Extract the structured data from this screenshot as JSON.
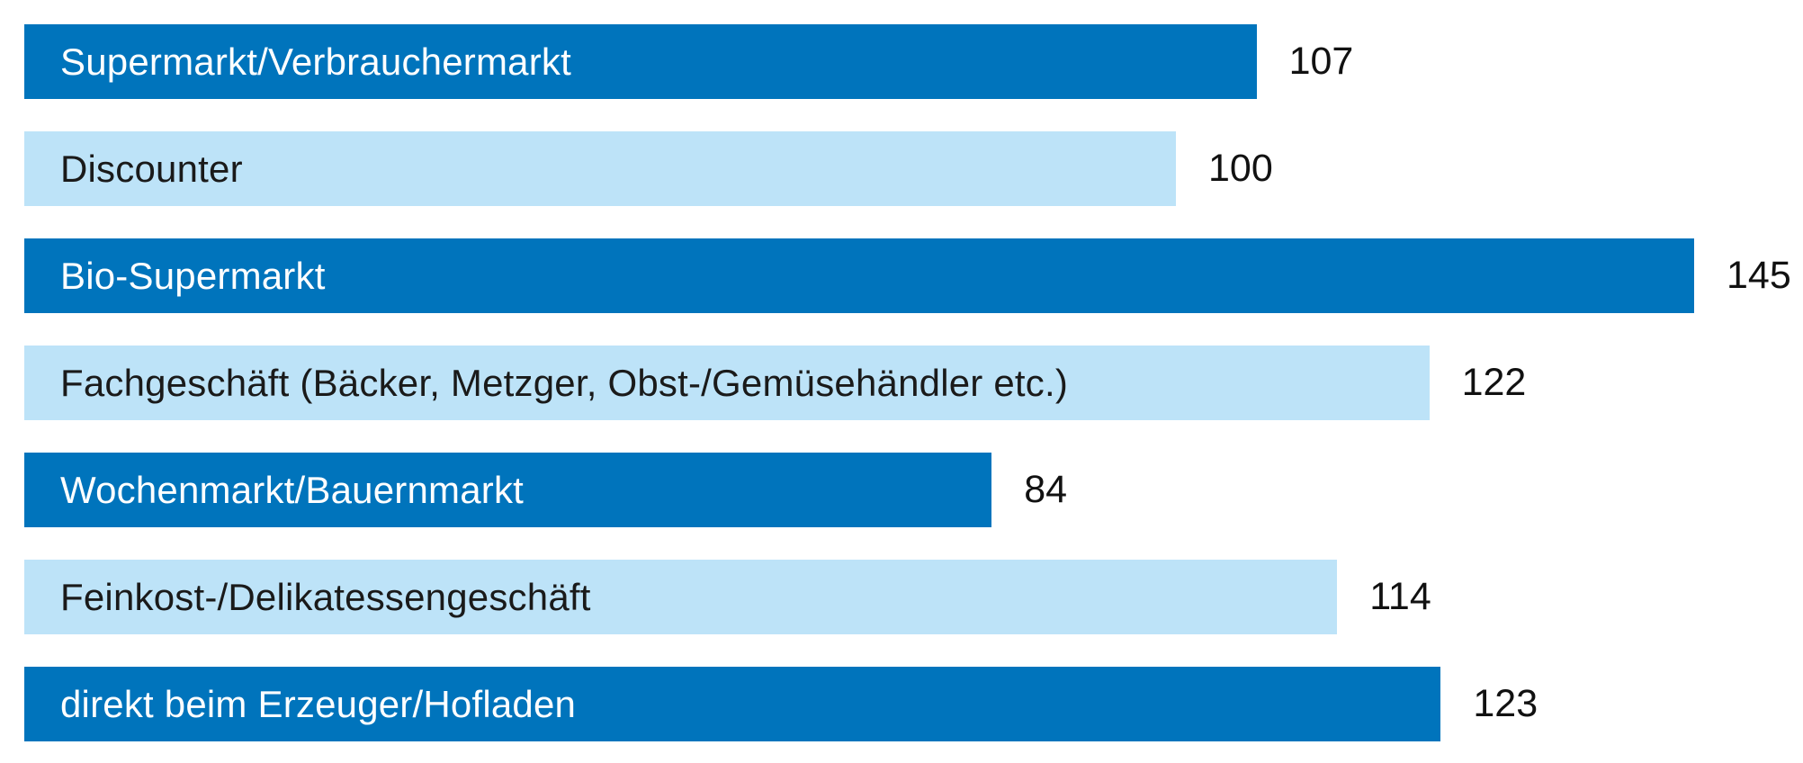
{
  "chart_data": {
    "type": "bar",
    "orientation": "horizontal",
    "title": "",
    "xlabel": "",
    "ylabel": "",
    "xlim": [
      0,
      150
    ],
    "grid": false,
    "legend": false,
    "categories": [
      "Supermarkt/Verbrauchermarkt",
      "Discounter",
      "Bio-Supermarkt",
      "Fachgeschäft (Bäcker, Metzger, Obst-/Gemüsehändler etc.)",
      "Wochenmarkt/Bauernmarkt",
      "Feinkost-/Delikatessengeschäft",
      "direkt beim Erzeuger/Hofladen"
    ],
    "values": [
      107,
      100,
      145,
      122,
      84,
      114,
      123
    ],
    "value_labels": [
      "107",
      "100",
      "145",
      "122",
      "84",
      "114",
      "123"
    ],
    "bar_styles": [
      "dark",
      "light",
      "dark",
      "light",
      "dark",
      "light",
      "dark"
    ],
    "colors": {
      "dark": "#0074bc",
      "light": "#bde3f8",
      "label_on_dark": "#ffffff",
      "label_on_light": "#1a1a1a",
      "value_text": "#111111"
    }
  }
}
